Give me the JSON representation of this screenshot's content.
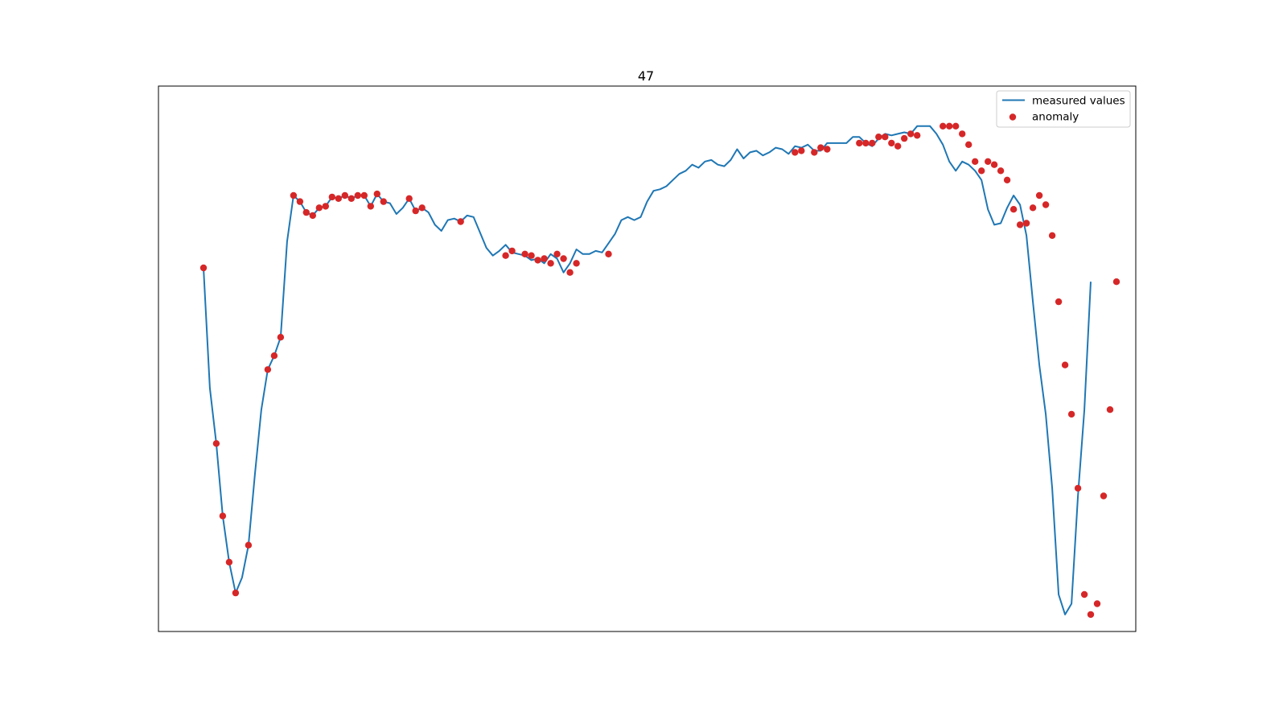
{
  "chart_data": {
    "type": "line",
    "title": "47",
    "xlabel": "",
    "ylabel": "",
    "axis_ticks": "hidden",
    "grid": false,
    "legend_placement": "top-right",
    "x_range": [
      -7,
      145
    ],
    "y_range": [
      -0.77,
      1.0
    ],
    "colors": {
      "line": "#1f77b4",
      "anomaly": "#d62728"
    },
    "legend": [
      "measured values",
      "anomaly"
    ],
    "series": [
      {
        "name": "measured values",
        "kind": "line",
        "values": [
          0.41,
          0.02,
          -0.16,
          -0.395,
          -0.545,
          -0.645,
          -0.595,
          -0.49,
          -0.26,
          -0.05,
          0.08,
          0.125,
          0.185,
          0.495,
          0.645,
          0.625,
          0.59,
          0.58,
          0.605,
          0.61,
          0.64,
          0.635,
          0.645,
          0.635,
          0.645,
          0.645,
          0.61,
          0.65,
          0.625,
          0.62,
          0.585,
          0.605,
          0.635,
          0.595,
          0.605,
          0.59,
          0.55,
          0.53,
          0.565,
          0.57,
          0.56,
          0.58,
          0.575,
          0.525,
          0.475,
          0.45,
          0.465,
          0.485,
          0.46,
          0.455,
          0.45,
          0.435,
          0.44,
          0.425,
          0.455,
          0.44,
          0.395,
          0.425,
          0.47,
          0.455,
          0.455,
          0.465,
          0.46,
          0.49,
          0.52,
          0.565,
          0.575,
          0.565,
          0.575,
          0.625,
          0.66,
          0.665,
          0.675,
          0.695,
          0.715,
          0.725,
          0.745,
          0.735,
          0.755,
          0.76,
          0.745,
          0.74,
          0.76,
          0.795,
          0.765,
          0.785,
          0.79,
          0.775,
          0.785,
          0.8,
          0.795,
          0.78,
          0.805,
          0.8,
          0.81,
          0.79,
          0.79,
          0.815,
          0.815,
          0.815,
          0.815,
          0.835,
          0.835,
          0.815,
          0.805,
          0.83,
          0.845,
          0.84,
          0.845,
          0.85,
          0.845,
          0.87,
          0.87,
          0.87,
          0.845,
          0.81,
          0.755,
          0.725,
          0.755,
          0.745,
          0.725,
          0.695,
          0.6,
          0.55,
          0.555,
          0.605,
          0.645,
          0.615,
          0.515,
          0.3,
          0.095,
          -0.065,
          -0.305,
          -0.65,
          -0.715,
          -0.68,
          -0.33,
          -0.05,
          0.365
        ]
      },
      {
        "name": "anomaly",
        "kind": "scatter",
        "points": [
          [
            0,
            0.41
          ],
          [
            2,
            -0.16
          ],
          [
            3,
            -0.395
          ],
          [
            4,
            -0.545
          ],
          [
            5,
            -0.645
          ],
          [
            7,
            -0.49
          ],
          [
            10,
            0.08
          ],
          [
            11,
            0.125
          ],
          [
            12,
            0.185
          ],
          [
            14,
            0.645
          ],
          [
            15,
            0.625
          ],
          [
            16,
            0.59
          ],
          [
            17,
            0.58
          ],
          [
            18,
            0.605
          ],
          [
            19,
            0.61
          ],
          [
            20,
            0.64
          ],
          [
            21,
            0.635
          ],
          [
            22,
            0.645
          ],
          [
            23,
            0.635
          ],
          [
            24,
            0.645
          ],
          [
            25,
            0.645
          ],
          [
            26,
            0.61
          ],
          [
            27,
            0.65
          ],
          [
            28,
            0.625
          ],
          [
            32,
            0.635
          ],
          [
            33,
            0.595
          ],
          [
            34,
            0.605
          ],
          [
            40,
            0.56
          ],
          [
            47,
            0.45
          ],
          [
            48,
            0.465
          ],
          [
            50,
            0.455
          ],
          [
            51,
            0.45
          ],
          [
            52,
            0.435
          ],
          [
            53,
            0.44
          ],
          [
            54,
            0.425
          ],
          [
            55,
            0.455
          ],
          [
            56,
            0.44
          ],
          [
            57,
            0.395
          ],
          [
            58,
            0.425
          ],
          [
            63,
            0.455
          ],
          [
            92,
            0.785
          ],
          [
            93,
            0.79
          ],
          [
            95,
            0.785
          ],
          [
            96,
            0.8
          ],
          [
            97,
            0.795
          ],
          [
            102,
            0.815
          ],
          [
            103,
            0.815
          ],
          [
            104,
            0.815
          ],
          [
            105,
            0.835
          ],
          [
            106,
            0.835
          ],
          [
            107,
            0.815
          ],
          [
            108,
            0.805
          ],
          [
            109,
            0.83
          ],
          [
            110,
            0.845
          ],
          [
            111,
            0.84
          ],
          [
            115,
            0.87
          ],
          [
            116,
            0.87
          ],
          [
            117,
            0.87
          ],
          [
            118,
            0.845
          ],
          [
            119,
            0.81
          ],
          [
            120,
            0.755
          ],
          [
            121,
            0.725
          ],
          [
            122,
            0.755
          ],
          [
            123,
            0.745
          ],
          [
            124,
            0.725
          ],
          [
            125,
            0.695
          ],
          [
            126,
            0.6
          ],
          [
            127,
            0.55
          ],
          [
            128,
            0.555
          ],
          [
            129,
            0.605
          ],
          [
            130,
            0.645
          ],
          [
            131,
            0.615
          ],
          [
            132,
            0.515
          ],
          [
            133,
            0.3
          ],
          [
            134,
            0.095
          ],
          [
            135,
            -0.065
          ],
          [
            136,
            -0.305
          ],
          [
            137,
            -0.65
          ],
          [
            138,
            -0.715
          ],
          [
            139,
            -0.68
          ],
          [
            140,
            -0.33
          ],
          [
            141,
            -0.05
          ],
          [
            142,
            0.365
          ]
        ]
      }
    ]
  }
}
